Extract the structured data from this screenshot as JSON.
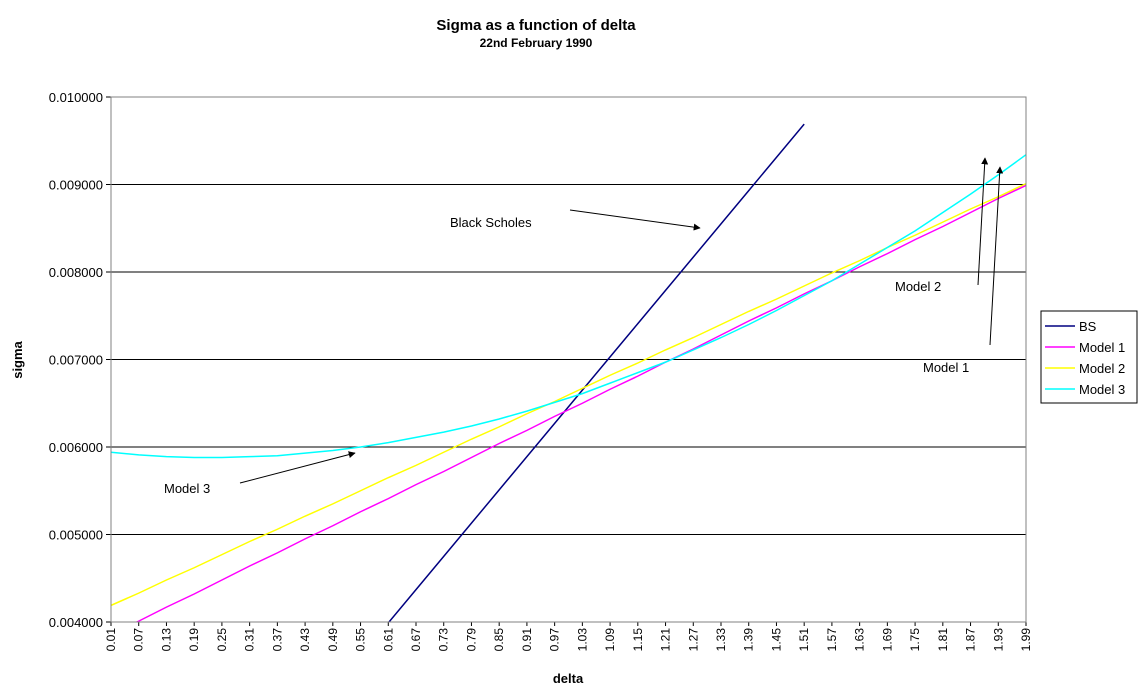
{
  "chart_data": {
    "type": "line",
    "title": "Sigma as a function of delta",
    "subtitle": "22nd February 1990",
    "xlabel": "delta",
    "ylabel": "sigma",
    "xlim": [
      0.01,
      1.99
    ],
    "ylim": [
      0.004,
      0.01
    ],
    "ytick_labels": [
      "0.004000",
      "0.005000",
      "0.006000",
      "0.007000",
      "0.008000",
      "0.009000",
      "0.010000"
    ],
    "ytick_values": [
      0.004,
      0.005,
      0.006,
      0.007,
      0.008,
      0.009,
      0.01
    ],
    "xtick_labels": [
      "0.01",
      "0.07",
      "0.13",
      "0.19",
      "0.25",
      "0.31",
      "0.37",
      "0.43",
      "0.49",
      "0.55",
      "0.61",
      "0.67",
      "0.73",
      "0.79",
      "0.85",
      "0.91",
      "0.97",
      "1.03",
      "1.09",
      "1.15",
      "1.21",
      "1.27",
      "1.33",
      "1.39",
      "1.45",
      "1.51",
      "1.57",
      "1.63",
      "1.69",
      "1.75",
      "1.81",
      "1.87",
      "1.93",
      "1.99"
    ],
    "grid": "horizontal",
    "legend_position": "right",
    "x": [
      0.01,
      0.07,
      0.13,
      0.19,
      0.25,
      0.31,
      0.37,
      0.43,
      0.49,
      0.55,
      0.61,
      0.67,
      0.73,
      0.79,
      0.85,
      0.91,
      0.97,
      1.03,
      1.09,
      1.15,
      1.21,
      1.27,
      1.33,
      1.39,
      1.45,
      1.51,
      1.57,
      1.63,
      1.69,
      1.75,
      1.81,
      1.87,
      1.93,
      1.99
    ],
    "series": [
      {
        "name": "BS",
        "color": "#000080",
        "values": [
          null,
          null,
          null,
          null,
          null,
          null,
          null,
          null,
          null,
          null,
          0.00399,
          0.00437,
          0.00475,
          0.00513,
          0.00551,
          0.00589,
          0.00627,
          0.00665,
          0.00703,
          0.00741,
          0.00779,
          0.00817,
          0.00855,
          0.00893,
          0.00931,
          0.00969,
          null,
          null,
          null,
          null,
          null,
          null,
          null,
          null
        ]
      },
      {
        "name": "Model 1",
        "color": "#ff00ff",
        "values": [
          0.00386,
          0.00401,
          0.00417,
          0.00432,
          0.00448,
          0.00464,
          0.00479,
          0.00495,
          0.0051,
          0.00526,
          0.00541,
          0.00557,
          0.00572,
          0.00588,
          0.00604,
          0.00619,
          0.00635,
          0.0065,
          0.00666,
          0.00681,
          0.00697,
          0.00712,
          0.00728,
          0.00744,
          0.00759,
          0.00775,
          0.0079,
          0.00806,
          0.00821,
          0.00837,
          0.00852,
          0.00868,
          0.00884,
          0.00899
        ]
      },
      {
        "name": "Model 2",
        "color": "#ffff00",
        "values": [
          0.00419,
          0.00433,
          0.00448,
          0.00462,
          0.00477,
          0.00492,
          0.00506,
          0.00521,
          0.00535,
          0.0055,
          0.00565,
          0.00579,
          0.00594,
          0.00609,
          0.00623,
          0.00638,
          0.00652,
          0.00667,
          0.00682,
          0.00696,
          0.00711,
          0.00725,
          0.0074,
          0.00755,
          0.00769,
          0.00784,
          0.00799,
          0.00813,
          0.00828,
          0.00842,
          0.00857,
          0.00872,
          0.00886,
          0.00901
        ]
      },
      {
        "name": "Model 3",
        "color": "#00ffff",
        "values": [
          0.00594,
          0.00591,
          0.00589,
          0.00588,
          0.00588,
          0.00589,
          0.0059,
          0.00593,
          0.00596,
          0.006,
          0.00605,
          0.00611,
          0.00617,
          0.00624,
          0.00632,
          0.00641,
          0.00651,
          0.00661,
          0.00673,
          0.00685,
          0.00697,
          0.00711,
          0.00725,
          0.0074,
          0.00756,
          0.00773,
          0.0079,
          0.00809,
          0.00828,
          0.00847,
          0.00868,
          0.00889,
          0.00911,
          0.00934
        ]
      }
    ],
    "annotations": [
      {
        "text": "Black Scholes",
        "target": "BS"
      },
      {
        "text": "Model 2",
        "target": "Model 2"
      },
      {
        "text": "Model 1",
        "target": "Model 1"
      },
      {
        "text": "Model 3",
        "target": "Model 3"
      }
    ]
  }
}
